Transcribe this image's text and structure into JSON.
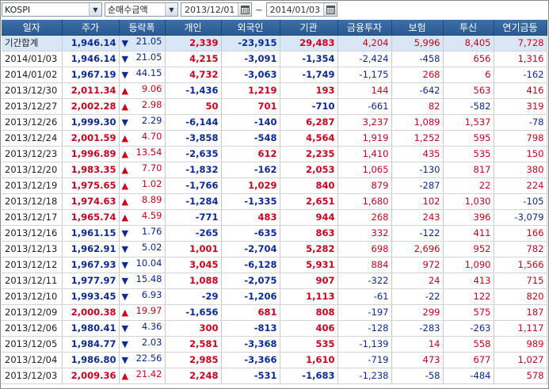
{
  "toolbar": {
    "market": "KOSPI",
    "mode": "순매수금액",
    "start_date": "2013/12/01",
    "end_date": "2014/01/03",
    "range_separator": "~"
  },
  "colors": {
    "header_bg": "#2f5f99",
    "up": "#d0021b",
    "down": "#0a2a9c",
    "summary_bg": "#d9e6f5"
  },
  "columns": [
    "일자",
    "주가",
    "등락폭",
    "개인",
    "외국인",
    "기관",
    "금융투자",
    "보험",
    "투신",
    "연기금등"
  ],
  "rows": [
    {
      "date": "기간합계",
      "price": "1,946.14",
      "dir": "down",
      "chg": "21.05",
      "ind": "2,339",
      "for": "-23,915",
      "inst": "29,483",
      "fin": "4,204",
      "ins": "5,996",
      "trust": "8,405",
      "pen": "7,728"
    },
    {
      "date": "2014/01/03",
      "price": "1,946.14",
      "dir": "down",
      "chg": "21.05",
      "ind": "4,215",
      "for": "-3,091",
      "inst": "-1,354",
      "fin": "-2,424",
      "ins": "-458",
      "trust": "656",
      "pen": "1,316"
    },
    {
      "date": "2014/01/02",
      "price": "1,967.19",
      "dir": "down",
      "chg": "44.15",
      "ind": "4,732",
      "for": "-3,063",
      "inst": "-1,749",
      "fin": "-1,175",
      "ins": "268",
      "trust": "6",
      "pen": "-162"
    },
    {
      "date": "2013/12/30",
      "price": "2,011.34",
      "dir": "up",
      "chg": "9.06",
      "ind": "-1,436",
      "for": "1,219",
      "inst": "193",
      "fin": "144",
      "ins": "-642",
      "trust": "563",
      "pen": "416"
    },
    {
      "date": "2013/12/27",
      "price": "2,002.28",
      "dir": "up",
      "chg": "2.98",
      "ind": "50",
      "for": "701",
      "inst": "-710",
      "fin": "-661",
      "ins": "82",
      "trust": "-582",
      "pen": "319"
    },
    {
      "date": "2013/12/26",
      "price": "1,999.30",
      "dir": "down",
      "chg": "2.29",
      "ind": "-6,144",
      "for": "-140",
      "inst": "6,287",
      "fin": "3,237",
      "ins": "1,089",
      "trust": "1,537",
      "pen": "-78"
    },
    {
      "date": "2013/12/24",
      "price": "2,001.59",
      "dir": "up",
      "chg": "4.70",
      "ind": "-3,858",
      "for": "-548",
      "inst": "4,564",
      "fin": "1,919",
      "ins": "1,252",
      "trust": "595",
      "pen": "798"
    },
    {
      "date": "2013/12/23",
      "price": "1,996.89",
      "dir": "up",
      "chg": "13.54",
      "ind": "-2,635",
      "for": "612",
      "inst": "2,235",
      "fin": "1,410",
      "ins": "435",
      "trust": "535",
      "pen": "150"
    },
    {
      "date": "2013/12/20",
      "price": "1,983.35",
      "dir": "up",
      "chg": "7.70",
      "ind": "-1,832",
      "for": "-162",
      "inst": "2,053",
      "fin": "1,065",
      "ins": "-130",
      "trust": "817",
      "pen": "380"
    },
    {
      "date": "2013/12/19",
      "price": "1,975.65",
      "dir": "up",
      "chg": "1.02",
      "ind": "-1,766",
      "for": "1,029",
      "inst": "840",
      "fin": "879",
      "ins": "-287",
      "trust": "22",
      "pen": "224"
    },
    {
      "date": "2013/12/18",
      "price": "1,974.63",
      "dir": "up",
      "chg": "8.89",
      "ind": "-1,284",
      "for": "-1,335",
      "inst": "2,651",
      "fin": "1,680",
      "ins": "102",
      "trust": "1,030",
      "pen": "-105"
    },
    {
      "date": "2013/12/17",
      "price": "1,965.74",
      "dir": "up",
      "chg": "4.59",
      "ind": "-771",
      "for": "483",
      "inst": "944",
      "fin": "268",
      "ins": "243",
      "trust": "396",
      "pen": "-3,079"
    },
    {
      "date": "2013/12/16",
      "price": "1,961.15",
      "dir": "down",
      "chg": "1.76",
      "ind": "-265",
      "for": "-635",
      "inst": "863",
      "fin": "332",
      "ins": "-122",
      "trust": "411",
      "pen": "166"
    },
    {
      "date": "2013/12/13",
      "price": "1,962.91",
      "dir": "down",
      "chg": "5.02",
      "ind": "1,001",
      "for": "-2,704",
      "inst": "5,282",
      "fin": "698",
      "ins": "2,696",
      "trust": "952",
      "pen": "782"
    },
    {
      "date": "2013/12/12",
      "price": "1,967.93",
      "dir": "down",
      "chg": "10.04",
      "ind": "3,045",
      "for": "-6,128",
      "inst": "5,931",
      "fin": "884",
      "ins": "972",
      "trust": "1,090",
      "pen": "1,566"
    },
    {
      "date": "2013/12/11",
      "price": "1,977.97",
      "dir": "down",
      "chg": "15.48",
      "ind": "1,088",
      "for": "-2,075",
      "inst": "907",
      "fin": "-322",
      "ins": "24",
      "trust": "413",
      "pen": "715"
    },
    {
      "date": "2013/12/10",
      "price": "1,993.45",
      "dir": "down",
      "chg": "6.93",
      "ind": "-29",
      "for": "-1,206",
      "inst": "1,113",
      "fin": "-61",
      "ins": "-22",
      "trust": "122",
      "pen": "820"
    },
    {
      "date": "2013/12/09",
      "price": "2,000.38",
      "dir": "up",
      "chg": "19.97",
      "ind": "-1,656",
      "for": "681",
      "inst": "808",
      "fin": "-197",
      "ins": "299",
      "trust": "575",
      "pen": "187"
    },
    {
      "date": "2013/12/06",
      "price": "1,980.41",
      "dir": "down",
      "chg": "4.36",
      "ind": "300",
      "for": "-813",
      "inst": "406",
      "fin": "-128",
      "ins": "-283",
      "trust": "-263",
      "pen": "1,117"
    },
    {
      "date": "2013/12/05",
      "price": "1,984.77",
      "dir": "down",
      "chg": "2.03",
      "ind": "2,581",
      "for": "-3,368",
      "inst": "535",
      "fin": "-1,139",
      "ins": "14",
      "trust": "558",
      "pen": "989"
    },
    {
      "date": "2013/12/04",
      "price": "1,986.80",
      "dir": "down",
      "chg": "22.56",
      "ind": "2,985",
      "for": "-3,366",
      "inst": "1,610",
      "fin": "-719",
      "ins": "473",
      "trust": "677",
      "pen": "1,027"
    },
    {
      "date": "2013/12/03",
      "price": "2,009.36",
      "dir": "up",
      "chg": "21.42",
      "ind": "2,248",
      "for": "-531",
      "inst": "-1,683",
      "fin": "-1,238",
      "ins": "-58",
      "trust": "-484",
      "pen": "578"
    }
  ]
}
